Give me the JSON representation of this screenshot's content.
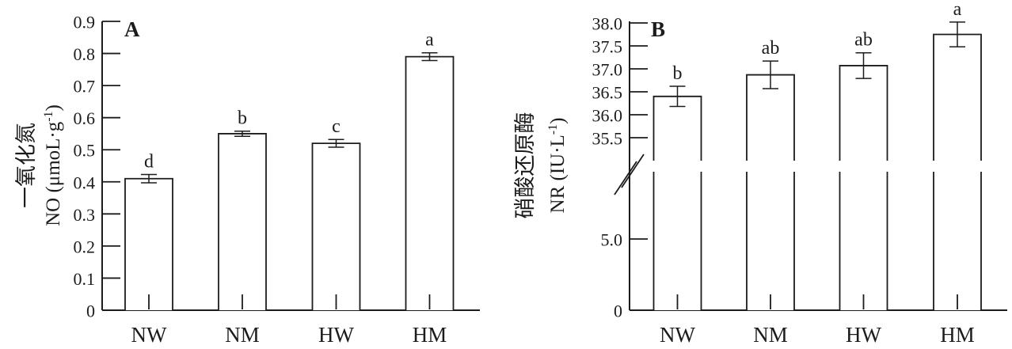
{
  "figure": {
    "background": "#ffffff",
    "ink_color": "#1c1c1c",
    "bar_fill": "#ffffff"
  },
  "chart_data": [
    {
      "type": "bar",
      "panel_label": "A",
      "categories": [
        "NW",
        "NM",
        "HW",
        "HM"
      ],
      "values": [
        0.41,
        0.55,
        0.52,
        0.79
      ],
      "errors": [
        0.013,
        0.008,
        0.012,
        0.012
      ],
      "sig_letters": [
        "d",
        "b",
        "c",
        "a"
      ],
      "ylabel_line1": "一氧化氮",
      "ylabel_line2": {
        "pre": "NO (μmoL·g",
        "sup": "-1",
        "post": ")"
      },
      "ylim": [
        0,
        0.9
      ],
      "yticks": [
        {
          "v": 0,
          "label": "0"
        },
        {
          "v": 0.1,
          "label": "0.1"
        },
        {
          "v": 0.2,
          "label": "0.2"
        },
        {
          "v": 0.3,
          "label": "0.3"
        },
        {
          "v": 0.4,
          "label": "0.4"
        },
        {
          "v": 0.5,
          "label": "0.5"
        },
        {
          "v": 0.6,
          "label": "0.6"
        },
        {
          "v": 0.7,
          "label": "0.7"
        },
        {
          "v": 0.8,
          "label": "0.8"
        },
        {
          "v": 0.9,
          "label": "0.9"
        }
      ],
      "axis_break": null,
      "grid": false,
      "legend": null
    },
    {
      "type": "bar",
      "panel_label": "B",
      "categories": [
        "NW",
        "NM",
        "HW",
        "HM"
      ],
      "values": [
        36.4,
        36.87,
        37.07,
        37.75
      ],
      "errors": [
        0.22,
        0.3,
        0.28,
        0.27
      ],
      "sig_letters": [
        "b",
        "ab",
        "ab",
        "a"
      ],
      "ylabel_line1": "硝酸还原酶",
      "ylabel_line2": {
        "pre": "NR (IU·L",
        "sup": "-1",
        "post": ")"
      },
      "ylim": [
        0,
        38.0
      ],
      "yticks_lower": [
        {
          "v": 0,
          "label": "0"
        },
        {
          "v": 5,
          "label": "5.0"
        }
      ],
      "yticks_upper": [
        {
          "v": 35.5,
          "label": "35.5"
        },
        {
          "v": 36.0,
          "label": "36.0"
        },
        {
          "v": 36.5,
          "label": "36.5"
        },
        {
          "v": 37.0,
          "label": "37.0"
        },
        {
          "v": 37.5,
          "label": "37.5"
        },
        {
          "v": 38.0,
          "label": "38.0"
        }
      ],
      "axis_break": {
        "lower_max": 5,
        "upper_min": 35.5
      },
      "grid": false,
      "legend": null
    }
  ]
}
